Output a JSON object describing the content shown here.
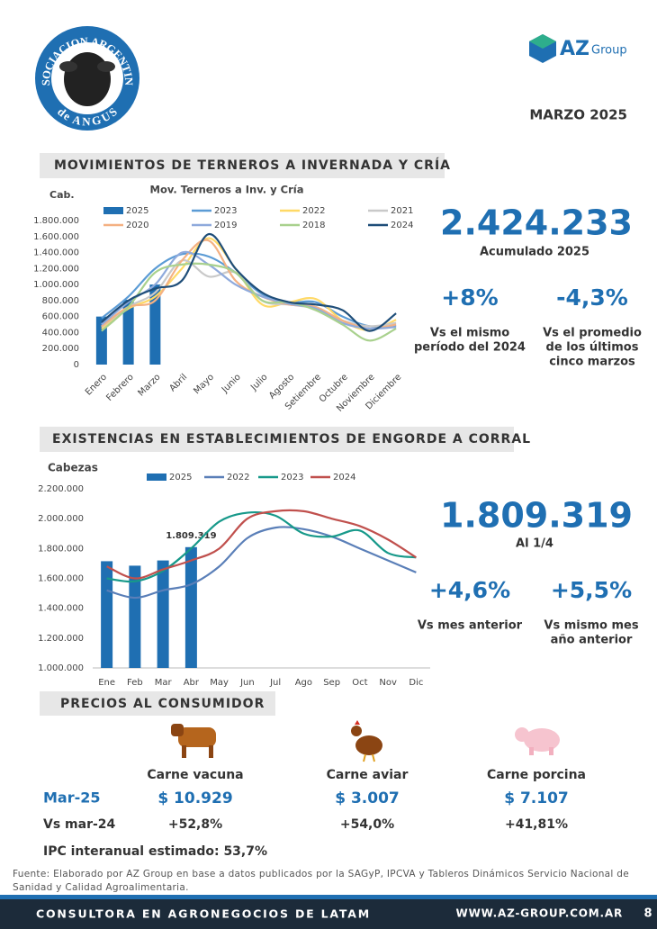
{
  "header": {
    "logo_left_top": "ASOCIACION ARGENTINA",
    "logo_left_bottom": "de ANGUS",
    "logo_right": "AZ",
    "logo_right_sub": "Group",
    "date": "MARZO 2025"
  },
  "section1": {
    "title": "MOVIMIENTOS DE TERNEROS A INVERNADA Y CRÍA",
    "stats": {
      "main": "2.424.233",
      "main_label": "Acumulado 2025",
      "items": [
        {
          "value": "+8%",
          "label": [
            "Vs el mismo",
            "período del 2024"
          ]
        },
        {
          "value": "-4,3%",
          "label": [
            "Vs el promedio",
            "de los últimos",
            "cinco marzos"
          ]
        }
      ]
    }
  },
  "section2": {
    "title": "EXISTENCIAS EN ESTABLECIMIENTOS DE ENGORDE A CORRAL",
    "stats": {
      "main": "1.809.319",
      "main_label": "Al 1/4",
      "items": [
        {
          "value": "+4,6%",
          "label": [
            "Vs mes anterior"
          ]
        },
        {
          "value": "+5,5%",
          "label": [
            "Vs mismo mes",
            "año anterior"
          ]
        }
      ]
    }
  },
  "chart_data": [
    {
      "type": "line",
      "title": "Mov. Terneros a Inv. y Cría",
      "y_label": "Cab.",
      "grid": false,
      "categories": [
        "Enero",
        "Febrero",
        "Marzo",
        "Abril",
        "Mayo",
        "Junio",
        "Julio",
        "Agosto",
        "Setiembre",
        "Octubre",
        "Noviembre",
        "Diciembre"
      ],
      "ylim": [
        0,
        1800000
      ],
      "yticks": [
        0,
        {
          "value": 200000,
          "label": "200.000"
        },
        {
          "value": 400000,
          "label": "400.000"
        },
        {
          "value": 600000,
          "label": "600.000"
        },
        {
          "value": 800000,
          "label": "800.000"
        },
        {
          "value": 1000000,
          "label": "1.000.000"
        },
        {
          "value": 1200000,
          "label": "1.200.000"
        },
        {
          "value": 1400000,
          "label": "1.400.000"
        },
        {
          "value": 1600000,
          "label": "1.600.000"
        },
        {
          "value": 1800000,
          "label": "1.800.000"
        }
      ],
      "series": [
        {
          "name": "2025",
          "type": "bar",
          "color": "#1f6fb2",
          "values": [
            600000,
            810000,
            1000000,
            null,
            null,
            null,
            null,
            null,
            null,
            null,
            null,
            null
          ]
        },
        {
          "name": "2023",
          "color": "#5b9bd5",
          "values": [
            580000,
            850000,
            1200000,
            1380000,
            1350000,
            1150000,
            880000,
            780000,
            780000,
            600000,
            480000,
            480000
          ]
        },
        {
          "name": "2022",
          "color": "#ffd966",
          "values": [
            450000,
            700000,
            850000,
            1200000,
            1580000,
            1200000,
            750000,
            780000,
            820000,
            550000,
            430000,
            560000
          ]
        },
        {
          "name": "2021",
          "color": "#c9c9c9",
          "values": [
            470000,
            720000,
            900000,
            1300000,
            1100000,
            1150000,
            800000,
            750000,
            700000,
            550000,
            480000,
            520000
          ]
        },
        {
          "name": "2020",
          "color": "#f4b183",
          "values": [
            480000,
            720000,
            800000,
            1300000,
            1550000,
            1050000,
            850000,
            750000,
            720000,
            550000,
            450000,
            500000
          ]
        },
        {
          "name": "2019",
          "color": "#8faadc",
          "values": [
            500000,
            780000,
            1000000,
            1400000,
            1250000,
            1000000,
            850000,
            760000,
            700000,
            520000,
            450000,
            470000
          ]
        },
        {
          "name": "2018",
          "color": "#a9d18e",
          "values": [
            420000,
            720000,
            1150000,
            1250000,
            1250000,
            1150000,
            800000,
            780000,
            680000,
            500000,
            300000,
            450000
          ]
        },
        {
          "name": "2024",
          "color": "#1f4e79",
          "values": [
            530000,
            800000,
            950000,
            1050000,
            1630000,
            1200000,
            900000,
            780000,
            750000,
            680000,
            420000,
            640000
          ]
        }
      ]
    },
    {
      "type": "line",
      "y_label": "Cabezas",
      "grid": false,
      "categories": [
        "Ene",
        "Feb",
        "Mar",
        "Abr",
        "May",
        "Jun",
        "Jul",
        "Ago",
        "Sep",
        "Oct",
        "Nov",
        "Dic"
      ],
      "ylim": [
        1000000,
        2200000
      ],
      "yticks": [
        {
          "value": 1000000,
          "label": "1.000.000"
        },
        {
          "value": 1200000,
          "label": "1.200.000"
        },
        {
          "value": 1400000,
          "label": "1.400.000"
        },
        {
          "value": 1600000,
          "label": "1.600.000"
        },
        {
          "value": 1800000,
          "label": "1.800.000"
        },
        {
          "value": 2000000,
          "label": "2.000.000"
        },
        {
          "value": 2200000,
          "label": "2.200.000"
        }
      ],
      "series": [
        {
          "name": "2025",
          "type": "bar",
          "color": "#1f6fb2",
          "values": [
            1715000,
            1685000,
            1720000,
            1809319,
            null,
            null,
            null,
            null,
            null,
            null,
            null,
            null
          ],
          "value_labels": [
            null,
            null,
            null,
            "1.809.319",
            null,
            null,
            null,
            null,
            null,
            null,
            null,
            null
          ]
        },
        {
          "name": "2022",
          "color": "#5a7fb8",
          "values": [
            1520000,
            1470000,
            1520000,
            1560000,
            1680000,
            1870000,
            1940000,
            1930000,
            1880000,
            1800000,
            1720000,
            1640000
          ]
        },
        {
          "name": "2023",
          "color": "#17998a",
          "values": [
            1600000,
            1580000,
            1650000,
            1800000,
            1980000,
            2040000,
            2020000,
            1900000,
            1880000,
            1920000,
            1770000,
            1740000
          ]
        },
        {
          "name": "2024",
          "color": "#c0504d",
          "values": [
            1680000,
            1600000,
            1660000,
            1720000,
            1800000,
            2000000,
            2050000,
            2050000,
            2000000,
            1950000,
            1860000,
            1740000
          ]
        }
      ]
    }
  ],
  "prices": {
    "title": "PRECIOS AL CONSUMIDOR",
    "row_labels": [
      "Mar-25",
      "Vs mar-24"
    ],
    "columns": [
      {
        "name": "Carne vacuna",
        "price": "$ 10.929",
        "change": "+52,8%"
      },
      {
        "name": "Carne aviar",
        "price": "$ 3.007",
        "change": "+54,0%"
      },
      {
        "name": "Carne porcina",
        "price": "$ 7.107",
        "change": "+41,81%"
      }
    ],
    "note": "IPC interanual estimado: 53,7%"
  },
  "source": "Fuente: Elaborado por AZ Group en base a datos publicados por la SAGyP, IPCVA y Tableros Dinámicos Servicio Nacional de Sanidad y Calidad Agroalimentaria.",
  "footer": {
    "left": "CONSULTORA EN AGRONEGOCIOS DE LATAM",
    "right": "WWW.AZ-GROUP.COM.AR",
    "page": "8"
  }
}
